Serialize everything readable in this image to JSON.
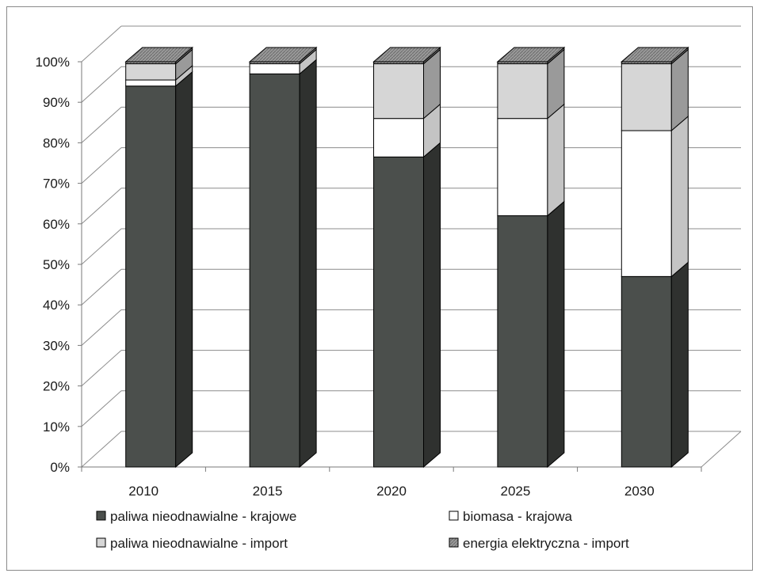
{
  "chart_data": {
    "type": "bar",
    "stacked": true,
    "percent": true,
    "three_d": true,
    "categories": [
      "2010",
      "2015",
      "2020",
      "2025",
      "2030"
    ],
    "series": [
      {
        "name": "paliwa nieodnawialne - krajowe",
        "color": "#4b4f4c",
        "values": [
          94,
          97,
          76.5,
          62,
          47
        ]
      },
      {
        "name": "biomasa - krajowa",
        "color": "#ffffff",
        "values": [
          1.5,
          2.5,
          9.5,
          24,
          36
        ]
      },
      {
        "name": "paliwa nieodnawialne - import",
        "color": "#d6d6d6",
        "values": [
          4,
          0,
          13.5,
          13.5,
          16.5
        ]
      },
      {
        "name": "energia elektryczna - import",
        "color": "#a8a8a8",
        "values": [
          0.5,
          0.5,
          0.5,
          0.5,
          0.5
        ]
      }
    ],
    "ylim": [
      0,
      100
    ],
    "yticks": [
      "0%",
      "10%",
      "20%",
      "30%",
      "40%",
      "50%",
      "60%",
      "70%",
      "80%",
      "90%",
      "100%"
    ],
    "xlabel": "",
    "ylabel": "",
    "grid": true,
    "legend_position": "bottom"
  }
}
